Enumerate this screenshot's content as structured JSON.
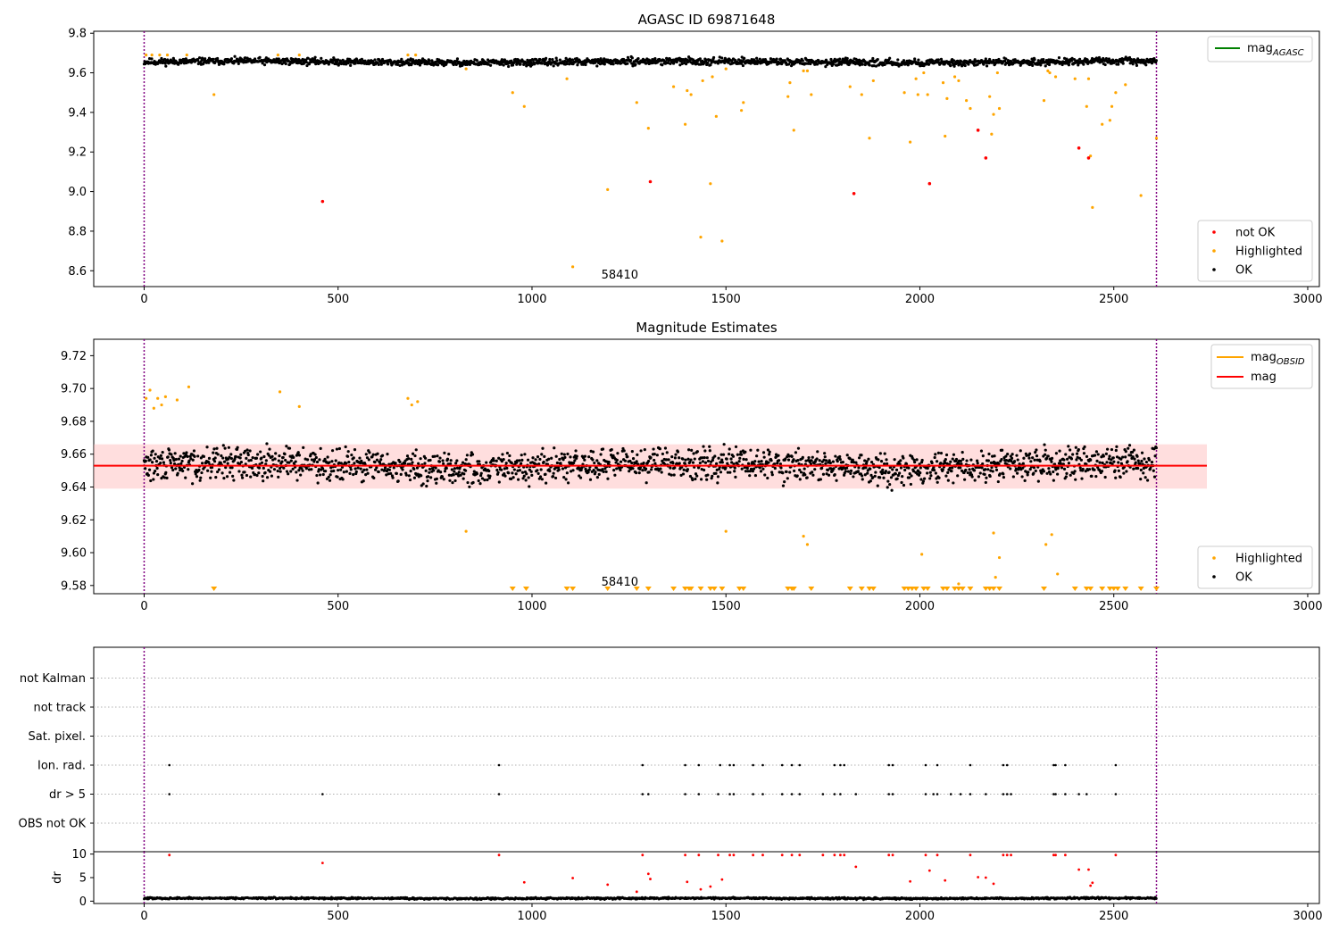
{
  "figure": {
    "colors": {
      "ok": "#000000",
      "highlighted": "#ffa500",
      "not_ok": "#ff0000",
      "band": "#ffb6b6",
      "mag_line": "#ff0000",
      "vline": "#800080",
      "agasc_line": "#008000",
      "obsid_line": "#ffa500"
    },
    "label_58410": "58410"
  },
  "chart_data": [
    {
      "type": "scatter",
      "title": "AGASC ID 69871648",
      "xlim": [
        -130,
        3030
      ],
      "ylim": [
        8.52,
        9.81
      ],
      "xticks": [
        0,
        500,
        1000,
        1500,
        2000,
        2500,
        3000
      ],
      "yticks": [
        8.6,
        8.8,
        9.0,
        9.2,
        9.4,
        9.6,
        9.8
      ],
      "vlines_x": [
        0,
        2610
      ],
      "annotation": {
        "text": "58410",
        "x": 1300
      },
      "legend_lines": [
        {
          "label": "mag",
          "sub": "AGASC",
          "color": "#008000"
        }
      ],
      "legend_markers": [
        {
          "label": "not OK",
          "color": "#ff0000"
        },
        {
          "label": "Highlighted",
          "color": "#ffa500"
        },
        {
          "label": "OK",
          "color": "#000000"
        }
      ],
      "series": [
        {
          "name": "OK",
          "color": "#000000",
          "band": {
            "x_range": [
              0,
              2610
            ],
            "center": 9.655,
            "spread": 0.025
          }
        },
        {
          "name": "Highlighted",
          "color": "#ffa500",
          "points": [
            [
              5,
              9.69
            ],
            [
              20,
              9.69
            ],
            [
              40,
              9.69
            ],
            [
              60,
              9.69
            ],
            [
              110,
              9.69
            ],
            [
              180,
              9.49
            ],
            [
              345,
              9.69
            ],
            [
              400,
              9.69
            ],
            [
              680,
              9.69
            ],
            [
              700,
              9.69
            ],
            [
              830,
              9.62
            ],
            [
              950,
              9.5
            ],
            [
              980,
              9.43
            ],
            [
              1090,
              9.57
            ],
            [
              1105,
              8.62
            ],
            [
              1195,
              9.01
            ],
            [
              1270,
              9.45
            ],
            [
              1300,
              9.32
            ],
            [
              1365,
              9.53
            ],
            [
              1395,
              9.34
            ],
            [
              1400,
              9.51
            ],
            [
              1410,
              9.49
            ],
            [
              1435,
              8.77
            ],
            [
              1440,
              9.56
            ],
            [
              1460,
              9.04
            ],
            [
              1465,
              9.58
            ],
            [
              1475,
              9.38
            ],
            [
              1490,
              8.75
            ],
            [
              1500,
              9.62
            ],
            [
              1540,
              9.41
            ],
            [
              1545,
              9.45
            ],
            [
              1660,
              9.48
            ],
            [
              1665,
              9.55
            ],
            [
              1675,
              9.31
            ],
            [
              1700,
              9.61
            ],
            [
              1710,
              9.61
            ],
            [
              1720,
              9.49
            ],
            [
              1820,
              9.53
            ],
            [
              1850,
              9.49
            ],
            [
              1870,
              9.27
            ],
            [
              1880,
              9.56
            ],
            [
              1960,
              9.5
            ],
            [
              1975,
              9.25
            ],
            [
              1990,
              9.57
            ],
            [
              1995,
              9.49
            ],
            [
              2010,
              9.6
            ],
            [
              2020,
              9.49
            ],
            [
              2060,
              9.55
            ],
            [
              2065,
              9.28
            ],
            [
              2070,
              9.47
            ],
            [
              2090,
              9.58
            ],
            [
              2100,
              9.56
            ],
            [
              2120,
              9.46
            ],
            [
              2130,
              9.42
            ],
            [
              2180,
              9.48
            ],
            [
              2185,
              9.29
            ],
            [
              2190,
              9.39
            ],
            [
              2200,
              9.6
            ],
            [
              2205,
              9.42
            ],
            [
              2320,
              9.46
            ],
            [
              2330,
              9.61
            ],
            [
              2335,
              9.6
            ],
            [
              2350,
              9.58
            ],
            [
              2400,
              9.57
            ],
            [
              2430,
              9.43
            ],
            [
              2435,
              9.57
            ],
            [
              2440,
              9.18
            ],
            [
              2445,
              8.92
            ],
            [
              2470,
              9.34
            ],
            [
              2490,
              9.36
            ],
            [
              2495,
              9.43
            ],
            [
              2505,
              9.5
            ],
            [
              2530,
              9.54
            ],
            [
              2570,
              8.98
            ],
            [
              2610,
              9.27
            ]
          ]
        },
        {
          "name": "not OK",
          "color": "#ff0000",
          "points": [
            [
              460,
              8.95
            ],
            [
              1305,
              9.05
            ],
            [
              1830,
              8.99
            ],
            [
              2025,
              9.04
            ],
            [
              2150,
              9.31
            ],
            [
              2170,
              9.17
            ],
            [
              2410,
              9.22
            ],
            [
              2435,
              9.17
            ]
          ]
        }
      ]
    },
    {
      "type": "scatter",
      "title": "Magnitude Estimates",
      "xlim": [
        -130,
        3030
      ],
      "ylim": [
        9.575,
        9.73
      ],
      "xticks": [
        0,
        500,
        1000,
        1500,
        2000,
        2500,
        3000
      ],
      "yticks": [
        9.58,
        9.6,
        9.62,
        9.64,
        9.66,
        9.68,
        9.7,
        9.72
      ],
      "vlines_x": [
        0,
        2610
      ],
      "annotation": {
        "text": "58410",
        "x": 1300
      },
      "band": {
        "x_range": [
          -130,
          2740
        ],
        "y_range": [
          9.639,
          9.666
        ]
      },
      "hline": {
        "y": 9.653,
        "x_range": [
          -130,
          2740
        ]
      },
      "legend_lines": [
        {
          "label": "mag",
          "sub": "OBSID",
          "color": "#ffa500"
        },
        {
          "label": "mag",
          "sub": "",
          "color": "#ff0000"
        }
      ],
      "legend_markers": [
        {
          "label": "Highlighted",
          "color": "#ffa500"
        },
        {
          "label": "OK",
          "color": "#000000"
        }
      ],
      "series": [
        {
          "name": "OK",
          "color": "#000000",
          "band": {
            "x_range": [
              0,
              2610
            ],
            "center": 9.653,
            "spread": 0.014
          }
        },
        {
          "name": "Highlighted",
          "color": "#ffa500",
          "points": [
            [
              5,
              9.694
            ],
            [
              15,
              9.699
            ],
            [
              25,
              9.688
            ],
            [
              35,
              9.694
            ],
            [
              45,
              9.69
            ],
            [
              55,
              9.695
            ],
            [
              85,
              9.693
            ],
            [
              115,
              9.701
            ],
            [
              350,
              9.698
            ],
            [
              400,
              9.689
            ],
            [
              680,
              9.694
            ],
            [
              690,
              9.69
            ],
            [
              705,
              9.692
            ],
            [
              830,
              9.613
            ],
            [
              1500,
              9.613
            ],
            [
              1700,
              9.61
            ],
            [
              1710,
              9.605
            ],
            [
              2005,
              9.599
            ],
            [
              2100,
              9.581
            ],
            [
              2190,
              9.612
            ],
            [
              2195,
              9.585
            ],
            [
              2205,
              9.597
            ],
            [
              2325,
              9.605
            ],
            [
              2340,
              9.611
            ],
            [
              2355,
              9.587
            ]
          ]
        },
        {
          "name": "Highlighted below range",
          "color": "#ffa500",
          "marker": "triangle-down",
          "x": [
            180,
            950,
            985,
            1090,
            1105,
            1195,
            1270,
            1300,
            1365,
            1395,
            1405,
            1410,
            1435,
            1460,
            1470,
            1490,
            1535,
            1545,
            1660,
            1670,
            1675,
            1720,
            1820,
            1850,
            1870,
            1880,
            1960,
            1970,
            1980,
            1990,
            2010,
            2020,
            2060,
            2070,
            2090,
            2100,
            2110,
            2130,
            2170,
            2180,
            2190,
            2205,
            2320,
            2400,
            2430,
            2440,
            2470,
            2490,
            2500,
            2510,
            2530,
            2570,
            2610
          ]
        }
      ]
    },
    {
      "type": "scatter",
      "title": "",
      "xlim": [
        -130,
        3030
      ],
      "xticks": [],
      "vlines_x": [
        0,
        2610
      ],
      "categories": [
        "OBS not OK",
        "dr > 5",
        "Ion. rad.",
        "Sat. pixel.",
        "not track",
        "not Kalman"
      ],
      "series": [
        {
          "name": "Ion. rad.",
          "color": "#000000",
          "x": [
            65,
            915,
            1285,
            1395,
            1430,
            1485,
            1510,
            1520,
            1570,
            1595,
            1645,
            1670,
            1690,
            1780,
            1795,
            1805,
            1920,
            1930,
            2015,
            2045,
            2130,
            2215,
            2225,
            2345,
            2350,
            2375,
            2505
          ]
        },
        {
          "name": "dr > 5",
          "color": "#000000",
          "x": [
            65,
            460,
            915,
            1285,
            1300,
            1395,
            1430,
            1480,
            1510,
            1520,
            1570,
            1595,
            1645,
            1670,
            1690,
            1750,
            1780,
            1795,
            1835,
            1920,
            1930,
            2015,
            2035,
            2045,
            2080,
            2105,
            2130,
            2170,
            2215,
            2225,
            2235,
            2345,
            2350,
            2375,
            2410,
            2430,
            2505
          ]
        }
      ]
    },
    {
      "type": "scatter",
      "title": "",
      "ylabel": "dr",
      "xlim": [
        -130,
        3030
      ],
      "ylim": [
        -0.5,
        10.5
      ],
      "xticks": [
        0,
        500,
        1000,
        1500,
        2000,
        2500,
        3000
      ],
      "yticks": [
        0,
        5,
        10
      ],
      "vlines_x": [
        0,
        2610
      ],
      "series": [
        {
          "name": "OK",
          "color": "#000000",
          "band": {
            "x_range": [
              0,
              2610
            ],
            "center": 0.6,
            "spread": 0.3
          }
        },
        {
          "name": "not OK",
          "color": "#ff0000",
          "points": [
            [
              65,
              9.8
            ],
            [
              460,
              8.1
            ],
            [
              915,
              9.8
            ],
            [
              980,
              4
            ],
            [
              1105,
              4.9
            ],
            [
              1195,
              3.5
            ],
            [
              1270,
              2
            ],
            [
              1285,
              9.8
            ],
            [
              1300,
              5.8
            ],
            [
              1305,
              4.7
            ],
            [
              1395,
              9.8
            ],
            [
              1400,
              4.1
            ],
            [
              1430,
              9.8
            ],
            [
              1435,
              2.5
            ],
            [
              1460,
              3.1
            ],
            [
              1480,
              9.8
            ],
            [
              1490,
              4.6
            ],
            [
              1510,
              9.8
            ],
            [
              1520,
              9.8
            ],
            [
              1570,
              9.8
            ],
            [
              1595,
              9.8
            ],
            [
              1645,
              9.8
            ],
            [
              1670,
              9.8
            ],
            [
              1690,
              9.8
            ],
            [
              1750,
              9.8
            ],
            [
              1780,
              9.8
            ],
            [
              1795,
              9.8
            ],
            [
              1805,
              9.8
            ],
            [
              1835,
              7.3
            ],
            [
              1920,
              9.8
            ],
            [
              1930,
              9.8
            ],
            [
              1975,
              4.2
            ],
            [
              2015,
              9.8
            ],
            [
              2025,
              6.5
            ],
            [
              2045,
              9.8
            ],
            [
              2065,
              4.4
            ],
            [
              2130,
              9.8
            ],
            [
              2150,
              5.1
            ],
            [
              2170,
              5
            ],
            [
              2190,
              3.7
            ],
            [
              2215,
              9.8
            ],
            [
              2225,
              9.8
            ],
            [
              2235,
              9.8
            ],
            [
              2345,
              9.8
            ],
            [
              2350,
              9.8
            ],
            [
              2375,
              9.8
            ],
            [
              2410,
              6.7
            ],
            [
              2435,
              6.7
            ],
            [
              2440,
              3.3
            ],
            [
              2445,
              3.9
            ],
            [
              2505,
              9.8
            ]
          ]
        }
      ]
    }
  ]
}
